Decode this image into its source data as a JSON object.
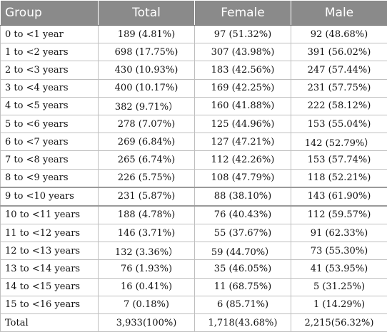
{
  "header": {
    "group": "Group",
    "total": "Total",
    "female": "Female",
    "male": "Male"
  },
  "rows": [
    {
      "group": "0 to <1 year",
      "total": "189 (4.81%)",
      "female": "97 (51.32%)",
      "male": "92 (48.68%)"
    },
    {
      "group": "1 to <2 years",
      "total": "698 (17.75%)",
      "female": "307 (43.98%)",
      "male": "391 (56.02%)"
    },
    {
      "group": "2 to <3 years",
      "total": "430 (10.93%)",
      "female": "183 (42.56%)",
      "male": "247 (57.44%)"
    },
    {
      "group": "3 to <4 years",
      "total": "400 (10.17%)",
      "female": "169 (42.25%)",
      "male": "231 (57.75%)"
    },
    {
      "group": "4 to <5 years",
      "total": "382 (9.71%）",
      "female": "160 (41.88%)",
      "male": "222 (58.12%)"
    },
    {
      "group": "5 to <6 years",
      "total": "278 (7.07%)",
      "female": "125 (44.96%)",
      "male": "153 (55.04%)"
    },
    {
      "group": "6 to <7 years",
      "total": "269 (6.84%)",
      "female": "127 (47.21%)",
      "male": "142 (52.79%）"
    },
    {
      "group": "7 to <8 years",
      "total": "265 (6.74%)",
      "female": "112 (42.26%)",
      "male": "153 (57.74%)"
    },
    {
      "group": "8 to <9 years",
      "total": "226 (5.75%)",
      "female": "108 (47.79%)",
      "male": "118 (52.21%)"
    },
    {
      "group": "9 to <10 years",
      "total": "231 (5.87%)",
      "female": "88 (38.10%)",
      "male": "143 (61.90%)"
    },
    {
      "group": "10 to <11 years",
      "total": "188 (4.78%)",
      "female": "76 (40.43%)",
      "male": "112 (59.57%)"
    },
    {
      "group": "11 to <12 years",
      "total": "146 (3.71%)",
      "female": "55 (37.67%)",
      "male": "91 (62.33%)"
    },
    {
      "group": "12 to <13 years",
      "total": "132 (3.36%）",
      "female": "59 (44.70%）",
      "male": "73 (55.30%)"
    },
    {
      "group": "13 to <14 years",
      "total": "76 (1.93%)",
      "female": "35 (46.05%)",
      "male": "41 (53.95%)"
    },
    {
      "group": "14 to <15 years",
      "total": "16 (0.41%)",
      "female": "11 (68.75%)",
      "male": "5 (31.25%)"
    },
    {
      "group": "15 to <16 years",
      "total": "7 (0.18%)",
      "female": "6 (85.71%)",
      "male": "1 (14.29%)"
    },
    {
      "group": "Total",
      "total": "3,933(100%)",
      "female": "1,718(43.68%)",
      "male": "2,215(56.32%)"
    }
  ]
}
